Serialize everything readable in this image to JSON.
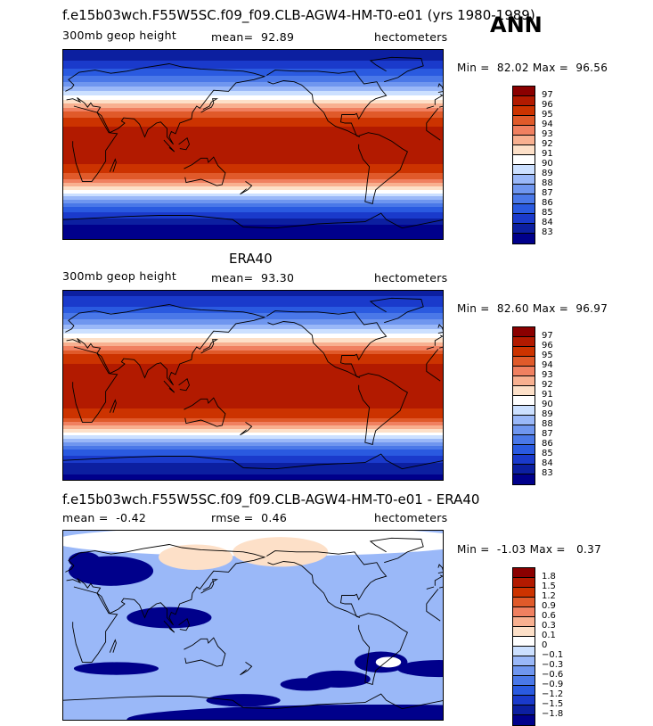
{
  "header": {
    "title": "f.e15b03wch.F55W5SC.f09_f09.CLB-AGW4-HM-T0-e01 (yrs 1980-1989)",
    "season": "ANN"
  },
  "panels": [
    {
      "title": "",
      "variable": "300mb geop height",
      "mean_label": "mean=",
      "mean_value": "92.89",
      "units": "hectometers",
      "min_label": "Min =",
      "min_value": "82.02",
      "max_label": "Max =",
      "max_value": "96.56"
    },
    {
      "title": "ERA40",
      "variable": "300mb geop height",
      "mean_label": "mean=",
      "mean_value": "93.30",
      "units": "hectometers",
      "min_label": "Min =",
      "min_value": "82.60",
      "max_label": "Max =",
      "max_value": "96.97"
    },
    {
      "title": "f.e15b03wch.F55W5SC.f09_f09.CLB-AGW4-HM-T0-e01 - ERA40",
      "mean_label": "mean =",
      "mean_value": "-0.42",
      "rmse_label": "rmse =",
      "rmse_value": "0.46",
      "units": "hectometers",
      "min_label": "Min =",
      "min_value": "-1.03",
      "max_label": "Max =",
      "max_value": "0.37"
    }
  ],
  "chart_data": [
    {
      "type": "heatmap",
      "title": "300mb geop height",
      "projection": "cylindrical-equidistant",
      "lon_range": [
        0,
        360
      ],
      "lat_range": [
        -90,
        90
      ],
      "mean": 92.89,
      "min": 82.02,
      "max": 96.56,
      "units": "hectometers",
      "colorbar_levels": [
        97,
        96,
        95,
        94,
        93,
        92,
        91,
        90,
        89,
        88,
        87,
        86,
        85,
        84,
        83
      ],
      "colors": [
        "#8a0000",
        "#b21a00",
        "#cc3300",
        "#e05a2a",
        "#f08060",
        "#f8b090",
        "#fde0c8",
        "#ffffff",
        "#cce0ff",
        "#9ab8f8",
        "#6f96ef",
        "#4a78e8",
        "#2a5ae0",
        "#1a3acb",
        "#0c1fa0",
        "#00008b"
      ],
      "zonal_profile": [
        {
          "lat": 90,
          "value": 83.0
        },
        {
          "lat": 75,
          "value": 84.5
        },
        {
          "lat": 60,
          "value": 87.0
        },
        {
          "lat": 45,
          "value": 90.5
        },
        {
          "lat": 30,
          "value": 94.5
        },
        {
          "lat": 15,
          "value": 96.3
        },
        {
          "lat": 0,
          "value": 96.5
        },
        {
          "lat": -15,
          "value": 96.3
        },
        {
          "lat": -30,
          "value": 94.5
        },
        {
          "lat": -45,
          "value": 90.0
        },
        {
          "lat": -60,
          "value": 85.5
        },
        {
          "lat": -75,
          "value": 83.0
        },
        {
          "lat": -90,
          "value": 82.0
        }
      ]
    },
    {
      "type": "heatmap",
      "title": "ERA40",
      "projection": "cylindrical-equidistant",
      "lon_range": [
        0,
        360
      ],
      "lat_range": [
        -90,
        90
      ],
      "mean": 93.3,
      "min": 82.6,
      "max": 96.97,
      "units": "hectometers",
      "colorbar_levels": [
        97,
        96,
        95,
        94,
        93,
        92,
        91,
        90,
        89,
        88,
        87,
        86,
        85,
        84,
        83
      ],
      "colors": [
        "#8a0000",
        "#b21a00",
        "#cc3300",
        "#e05a2a",
        "#f08060",
        "#f8b090",
        "#fde0c8",
        "#ffffff",
        "#cce0ff",
        "#9ab8f8",
        "#6f96ef",
        "#4a78e8",
        "#2a5ae0",
        "#1a3acb",
        "#0c1fa0",
        "#00008b"
      ],
      "zonal_profile": [
        {
          "lat": 90,
          "value": 83.5
        },
        {
          "lat": 75,
          "value": 85.0
        },
        {
          "lat": 60,
          "value": 87.5
        },
        {
          "lat": 45,
          "value": 91.0
        },
        {
          "lat": 30,
          "value": 95.0
        },
        {
          "lat": 15,
          "value": 96.7
        },
        {
          "lat": 0,
          "value": 96.9
        },
        {
          "lat": -15,
          "value": 96.7
        },
        {
          "lat": -30,
          "value": 95.0
        },
        {
          "lat": -45,
          "value": 90.5
        },
        {
          "lat": -60,
          "value": 86.0
        },
        {
          "lat": -75,
          "value": 83.5
        },
        {
          "lat": -90,
          "value": 82.6
        }
      ]
    },
    {
      "type": "heatmap",
      "title": "f.e15b03wch.F55W5SC.f09_f09.CLB-AGW4-HM-T0-e01 - ERA40",
      "projection": "cylindrical-equidistant",
      "lon_range": [
        0,
        360
      ],
      "lat_range": [
        -90,
        90
      ],
      "mean": -0.42,
      "rmse": 0.46,
      "min": -1.03,
      "max": 0.37,
      "units": "hectometers",
      "colorbar_levels": [
        "1.8",
        "1.5",
        "1.2",
        "0.9",
        "0.6",
        "0.3",
        "0.1",
        "0",
        "−0.1",
        "−0.3",
        "−0.6",
        "−0.9",
        "−1.2",
        "−1.5",
        "−1.8"
      ],
      "colors": [
        "#8a0000",
        "#b21a00",
        "#cc3300",
        "#e05a2a",
        "#f08060",
        "#f8b090",
        "#fde0c8",
        "#ffffff",
        "#cce0ff",
        "#9ab8f8",
        "#6f96ef",
        "#4a78e8",
        "#2a5ae0",
        "#1a3acb",
        "#0c1fa0",
        "#00008b"
      ]
    }
  ]
}
